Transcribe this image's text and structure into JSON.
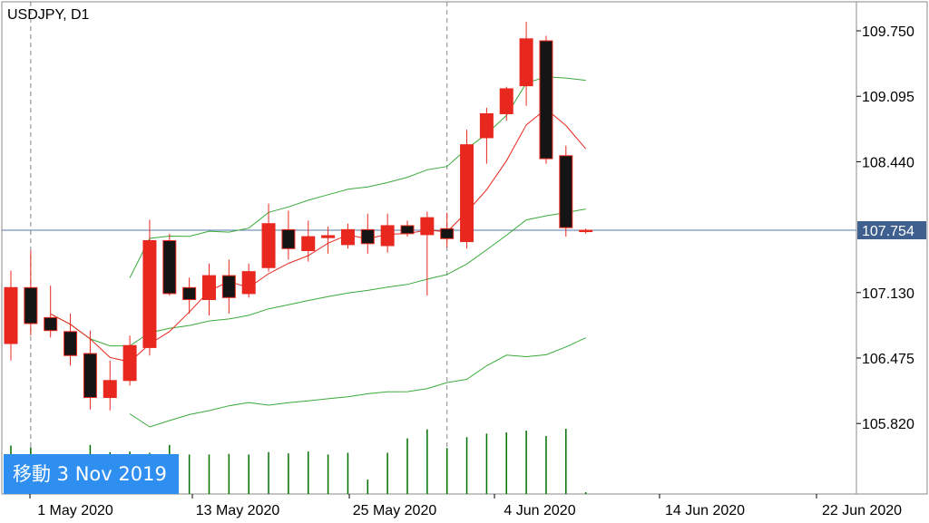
{
  "header": {
    "symbol": "USDJPY, D1"
  },
  "goto_badge": {
    "label": "移動 3 Nov 2019"
  },
  "chart_data": {
    "type": "candlestick",
    "current_price_label": "107.754",
    "current_price": 107.754,
    "y_axis": {
      "ticks": [
        "109.750",
        "109.095",
        "108.440",
        "107.130",
        "106.475",
        "105.820"
      ],
      "min": 105.4,
      "max": 110.1
    },
    "x_axis": {
      "ticks": [
        "1 May 2020",
        "13 May 2020",
        "25 May 2020",
        "4 Jun 2020",
        "14 Jun 2020",
        "22 Jun 2020"
      ]
    },
    "colors": {
      "bull": "#e8281e",
      "bear": "#151515",
      "ma": "#e8281e",
      "bands": "#3aaa3a",
      "volume": "#007000",
      "price_line": "#5577aa"
    },
    "candles": [
      {
        "date": "2020-04-29",
        "open": 106.62,
        "high": 107.35,
        "low": 106.45,
        "close": 107.18
      },
      {
        "date": "2020-04-30",
        "open": 107.18,
        "high": 107.55,
        "low": 106.7,
        "close": 106.82
      },
      {
        "date": "2020-05-01",
        "open": 106.88,
        "high": 107.2,
        "low": 106.68,
        "close": 106.75
      },
      {
        "date": "2020-05-04",
        "open": 106.74,
        "high": 106.92,
        "low": 106.4,
        "close": 106.5
      },
      {
        "date": "2020-05-05",
        "open": 106.52,
        "high": 106.75,
        "low": 105.96,
        "close": 106.08
      },
      {
        "date": "2020-05-06",
        "open": 106.08,
        "high": 106.45,
        "low": 105.95,
        "close": 106.25
      },
      {
        "date": "2020-05-07",
        "open": 106.25,
        "high": 106.7,
        "low": 106.2,
        "close": 106.6
      },
      {
        "date": "2020-05-08",
        "open": 106.58,
        "high": 107.86,
        "low": 106.5,
        "close": 107.65
      },
      {
        "date": "2020-05-11",
        "open": 107.65,
        "high": 107.72,
        "low": 107.1,
        "close": 107.12
      },
      {
        "date": "2020-05-12",
        "open": 107.18,
        "high": 107.28,
        "low": 106.92,
        "close": 107.06
      },
      {
        "date": "2020-05-13",
        "open": 107.06,
        "high": 107.42,
        "low": 106.9,
        "close": 107.3
      },
      {
        "date": "2020-05-14",
        "open": 107.3,
        "high": 107.46,
        "low": 106.92,
        "close": 107.08
      },
      {
        "date": "2020-05-15",
        "open": 107.12,
        "high": 107.42,
        "low": 107.08,
        "close": 107.34
      },
      {
        "date": "2020-05-18",
        "open": 107.38,
        "high": 108.02,
        "low": 107.34,
        "close": 107.82
      },
      {
        "date": "2020-05-19",
        "open": 107.76,
        "high": 107.95,
        "low": 107.46,
        "close": 107.57
      },
      {
        "date": "2020-05-20",
        "open": 107.55,
        "high": 107.85,
        "low": 107.44,
        "close": 107.69
      },
      {
        "date": "2020-05-21",
        "open": 107.68,
        "high": 107.79,
        "low": 107.52,
        "close": 107.7
      },
      {
        "date": "2020-05-22",
        "open": 107.61,
        "high": 107.82,
        "low": 107.57,
        "close": 107.76
      },
      {
        "date": "2020-05-25",
        "open": 107.76,
        "high": 107.92,
        "low": 107.52,
        "close": 107.62
      },
      {
        "date": "2020-05-26",
        "open": 107.6,
        "high": 107.92,
        "low": 107.53,
        "close": 107.8
      },
      {
        "date": "2020-05-27",
        "open": 107.8,
        "high": 107.85,
        "low": 107.69,
        "close": 107.72
      },
      {
        "date": "2020-05-28",
        "open": 107.71,
        "high": 107.94,
        "low": 107.1,
        "close": 107.88
      },
      {
        "date": "2020-05-29",
        "open": 107.77,
        "high": 107.93,
        "low": 107.58,
        "close": 107.67
      },
      {
        "date": "2020-06-01",
        "open": 107.64,
        "high": 108.76,
        "low": 107.57,
        "close": 108.61
      },
      {
        "date": "2020-06-02",
        "open": 108.68,
        "high": 108.98,
        "low": 108.42,
        "close": 108.92
      },
      {
        "date": "2020-06-03",
        "open": 108.92,
        "high": 109.19,
        "low": 108.85,
        "close": 109.17
      },
      {
        "date": "2020-06-04",
        "open": 109.2,
        "high": 109.84,
        "low": 109.0,
        "close": 109.67
      },
      {
        "date": "2020-06-05",
        "open": 109.65,
        "high": 109.7,
        "low": 108.42,
        "close": 108.47
      },
      {
        "date": "2020-06-08",
        "open": 108.5,
        "high": 108.6,
        "low": 107.69,
        "close": 107.78
      },
      {
        "date": "2020-06-09",
        "open": 107.74,
        "high": 107.77,
        "low": 107.72,
        "close": 107.754
      }
    ]
  }
}
